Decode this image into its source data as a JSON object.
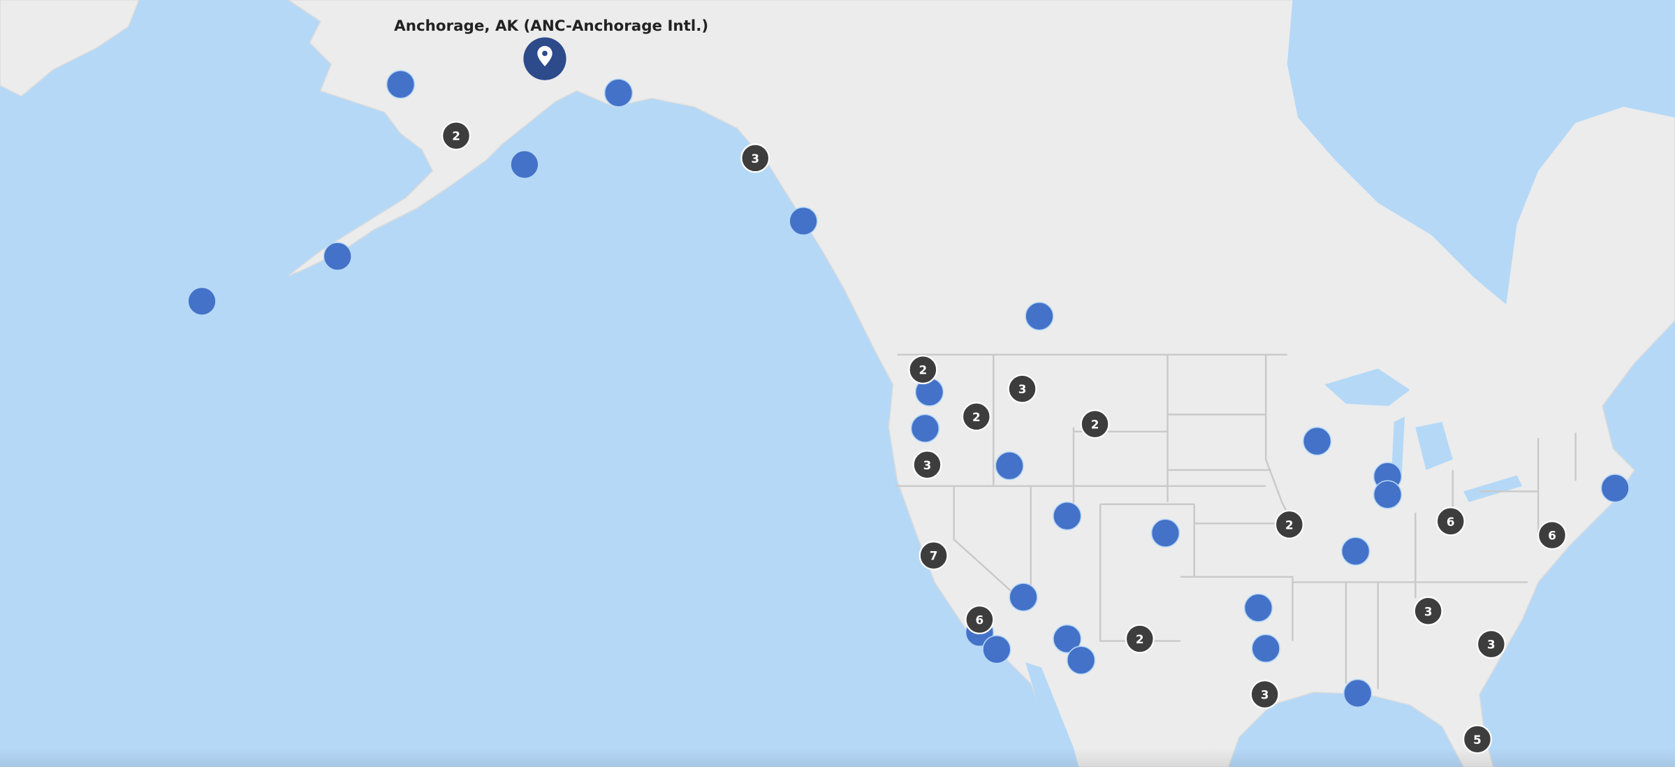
{
  "selected_airport": {
    "label": "Anchorage, AK (ANC-Anchorage Intl.)"
  },
  "clusters": [
    {
      "count": 2
    },
    {
      "count": 3
    },
    {
      "count": 2
    },
    {
      "count": 3
    },
    {
      "count": 2
    },
    {
      "count": 2
    },
    {
      "count": 3
    },
    {
      "count": 2
    },
    {
      "count": 6
    },
    {
      "count": 6
    },
    {
      "count": 7
    },
    {
      "count": 6
    },
    {
      "count": 2
    },
    {
      "count": 3
    },
    {
      "count": 3
    },
    {
      "count": 3
    },
    {
      "count": 5
    }
  ]
}
